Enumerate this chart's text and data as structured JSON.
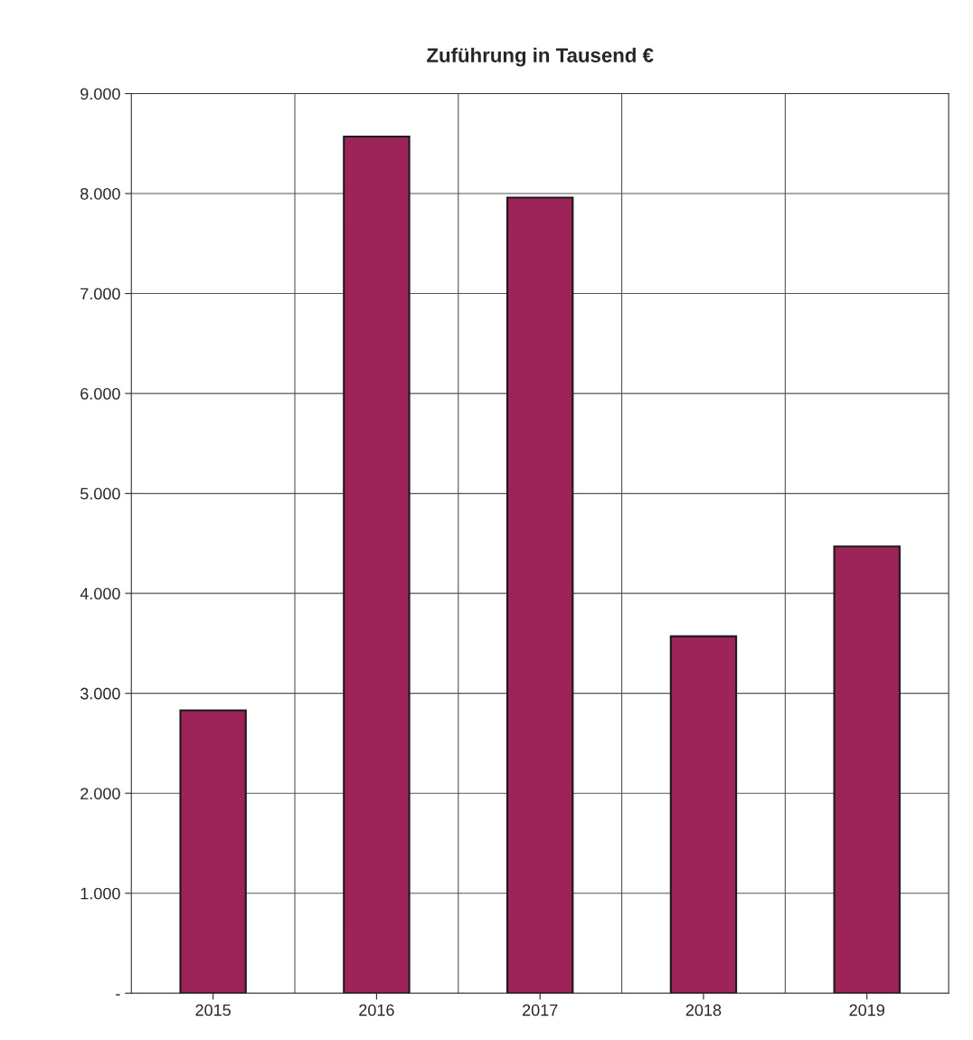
{
  "chart_data": {
    "type": "bar",
    "title": "Zuführung in Tausend €",
    "categories": [
      "2015",
      "2016",
      "2017",
      "2018",
      "2019"
    ],
    "values": [
      2830,
      8570,
      7960,
      3570,
      4470
    ],
    "color": "#9c2458",
    "ylim": [
      0,
      9000
    ],
    "yticks": [
      {
        "value": 0,
        "label": "-"
      },
      {
        "value": 1000,
        "label": "1.000"
      },
      {
        "value": 2000,
        "label": "2.000"
      },
      {
        "value": 3000,
        "label": "3.000"
      },
      {
        "value": 4000,
        "label": "4.000"
      },
      {
        "value": 5000,
        "label": "5.000"
      },
      {
        "value": 6000,
        "label": "6.000"
      },
      {
        "value": 7000,
        "label": "7.000"
      },
      {
        "value": 8000,
        "label": "8.000"
      },
      {
        "value": 9000,
        "label": "9.000"
      }
    ],
    "grid": true,
    "legend": false
  }
}
